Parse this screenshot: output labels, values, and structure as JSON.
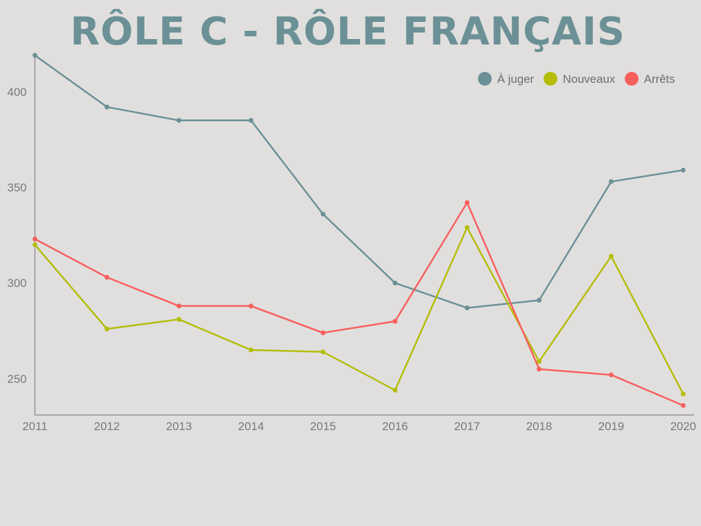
{
  "chart_data": {
    "type": "line",
    "title": "RÔLE C - RÔLE FRANÇAIS",
    "categories": [
      "2011",
      "2012",
      "2013",
      "2014",
      "2015",
      "2016",
      "2017",
      "2018",
      "2019",
      "2020"
    ],
    "ylim": [
      231,
      420
    ],
    "yticks": [
      250,
      300,
      350,
      400
    ],
    "grid": false,
    "legend_position": "top-right",
    "series": [
      {
        "name": "À juger",
        "color": "#6b9196",
        "values": [
          419,
          392,
          385,
          385,
          336,
          300,
          287,
          291,
          353,
          359
        ]
      },
      {
        "name": "Nouveaux",
        "color": "#b4bd09",
        "values": [
          320,
          276,
          281,
          265,
          264,
          244,
          329,
          259,
          314,
          242
        ]
      },
      {
        "name": "Arrêts",
        "color": "#f75f5d",
        "values": [
          323,
          303,
          288,
          288,
          274,
          280,
          342,
          255,
          252,
          236
        ]
      }
    ]
  }
}
